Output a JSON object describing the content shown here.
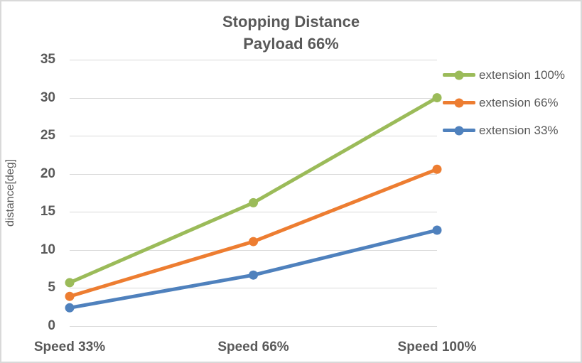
{
  "chart_data": {
    "type": "line",
    "title": "Stopping Distance",
    "subtitle": "Payload 66%",
    "categories": [
      "Speed 33%",
      "Speed 66%",
      "Speed 100%"
    ],
    "series": [
      {
        "name": "extension 100%",
        "color": "#9bbb59",
        "values": [
          5.7,
          16.2,
          30.0
        ]
      },
      {
        "name": "extension 66%",
        "color": "#ed7d31",
        "values": [
          3.9,
          11.1,
          20.6
        ]
      },
      {
        "name": "extension 33%",
        "color": "#4f81bd",
        "values": [
          2.4,
          6.7,
          12.6
        ]
      }
    ],
    "xlabel": "",
    "ylabel": "distance[deg]",
    "ylim": [
      0,
      35
    ],
    "yticks": [
      0,
      5,
      10,
      15,
      20,
      25,
      30,
      35
    ],
    "grid": true,
    "legend_position": "right",
    "marker": "circle",
    "text_color": "#595959",
    "gridline_color": "#d9d9d9",
    "background_color": "#ffffff",
    "border_color": "#d9d9d9"
  }
}
